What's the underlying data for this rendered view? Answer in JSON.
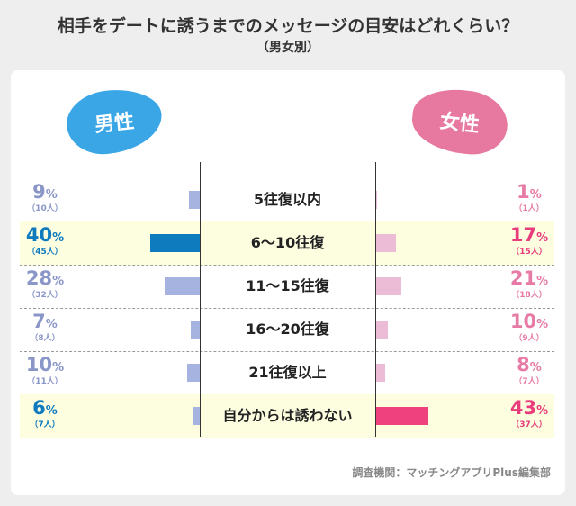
{
  "title": "相手をデートに誘うまでのメッセージの目安はどれくらい？",
  "subtitle": "（男女別）",
  "credit": "調査機関：マッチングアプリPlus編集部",
  "colors": {
    "male_label": "#8a96c8",
    "male_highlight": "#0f7bbf",
    "male_bar": "#a6b3e0",
    "male_bar_highlight": "#0f7bbf",
    "female_label": "#e77ba6",
    "female_highlight": "#e83c7c",
    "female_bar": "#ecbcd6",
    "female_bar_highlight": "#f0417f",
    "row_highlight": "#fdfde0"
  },
  "chart_data": {
    "type": "bar",
    "orientation": "horizontal-butterfly",
    "categories": [
      "5往復以内",
      "6〜10往復",
      "11〜15往復",
      "16〜20往復",
      "21往復以上",
      "自分からは誘わない"
    ],
    "highlighted": [
      1,
      5
    ],
    "series": [
      {
        "name": "男性",
        "side": "left",
        "values": [
          9,
          40,
          28,
          7,
          10,
          6
        ],
        "counts": [
          "（10人）",
          "（45人）",
          "（32人）",
          "（8人）",
          "（11人）",
          "（7人）"
        ]
      },
      {
        "name": "女性",
        "side": "right",
        "values": [
          1,
          17,
          21,
          10,
          8,
          43
        ],
        "counts": [
          "（1人）",
          "（15人）",
          "（18人）",
          "（9人）",
          "（7人）",
          "（37人）"
        ]
      }
    ],
    "unit": "%"
  }
}
